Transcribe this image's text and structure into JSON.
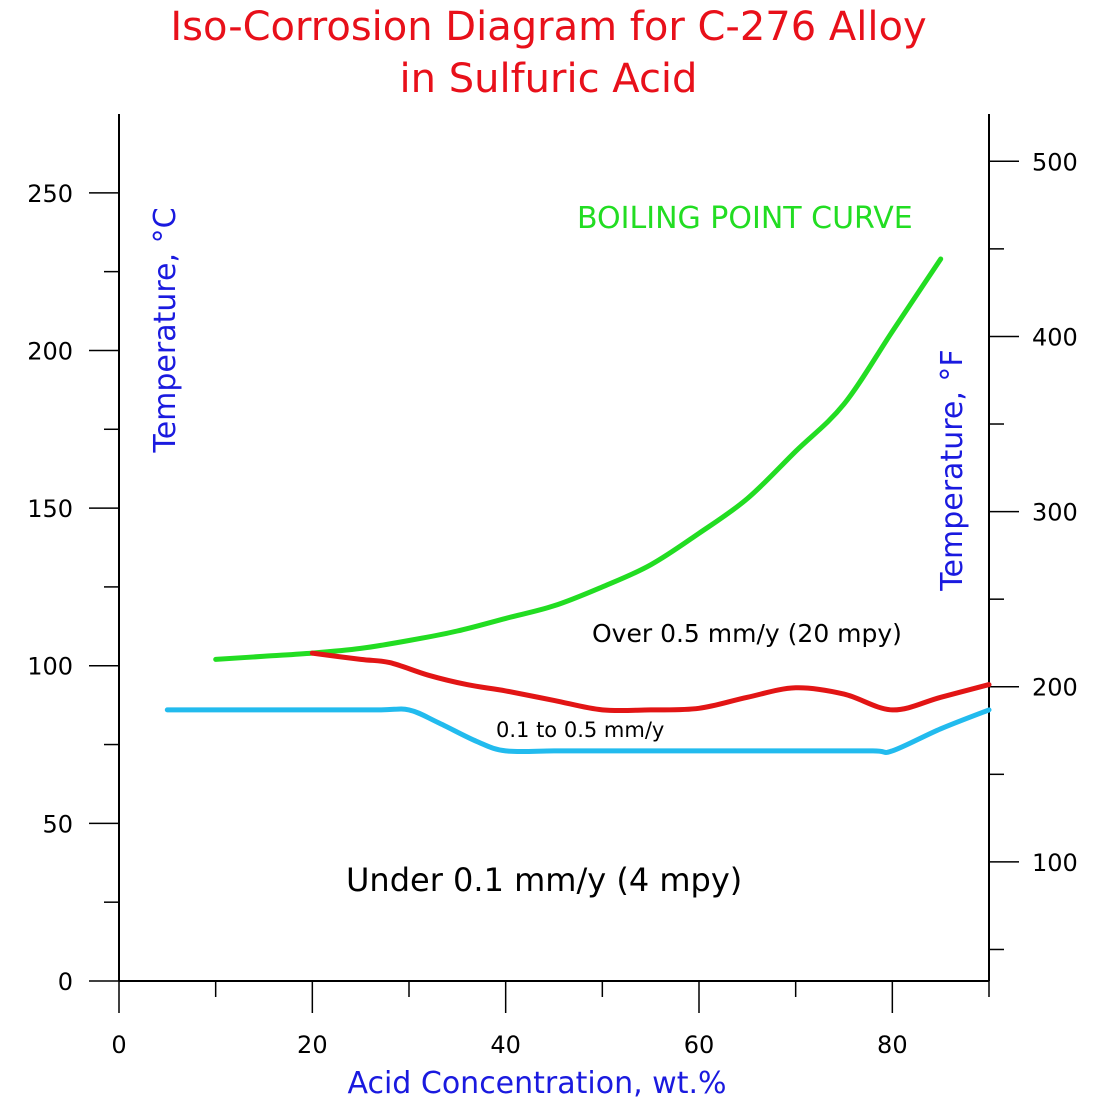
{
  "chart_data": {
    "type": "line",
    "title_line1": "Iso-Corrosion Diagram for C-276 Alloy",
    "title_line2": "in Sulfuric Acid",
    "xlabel": "Acid Concentration, wt.%",
    "ylabel_left": "Temperature, °C",
    "ylabel_right": "Temperature, °F",
    "xlim": [
      0,
      90
    ],
    "ylim": [
      0,
      275
    ],
    "ylim_right": [
      32,
      527
    ],
    "x_ticks": [
      0,
      20,
      40,
      60,
      80
    ],
    "y_ticks": [
      0,
      50,
      100,
      150,
      200,
      250
    ],
    "y_ticks_right": [
      100,
      200,
      300,
      400,
      500
    ],
    "grid": false,
    "series": [
      {
        "name": "BOILING POINT CURVE",
        "color": "#22dd22",
        "x": [
          10,
          15,
          20,
          25,
          30,
          35,
          40,
          45,
          50,
          55,
          60,
          65,
          70,
          75,
          80,
          85
        ],
        "y": [
          102,
          103,
          104,
          105.5,
          108,
          111,
          115,
          119,
          125,
          132,
          142,
          153,
          168,
          183,
          206,
          229
        ]
      },
      {
        "name": "0.5 mm/y",
        "color": "#e21515",
        "x": [
          20,
          25,
          28,
          32,
          36,
          40,
          45,
          50,
          55,
          60,
          65,
          70,
          75,
          80,
          85,
          90
        ],
        "y": [
          104,
          102,
          101,
          97,
          94,
          92,
          89,
          86,
          86,
          86.5,
          90,
          93,
          91,
          86,
          90,
          94
        ]
      },
      {
        "name": "0.1 mm/y",
        "color": "#22bbee",
        "x": [
          5,
          10,
          20,
          27,
          30,
          33,
          37,
          40,
          45,
          50,
          60,
          70,
          78,
          80,
          85,
          90
        ],
        "y": [
          86,
          86,
          86,
          86,
          86,
          82,
          76,
          73,
          73,
          73,
          73,
          73,
          73,
          73,
          80,
          86
        ]
      }
    ],
    "annotations": {
      "boiling_point": "BOILING POINT CURVE",
      "over": "Over 0.5 mm/y (20 mpy)",
      "between": "0.1 to 0.5 mm/y",
      "under": "Under 0.1 mm/y (4 mpy)"
    },
    "colors": {
      "title": "#e8101a",
      "axis_label": "#1a1adf",
      "annotation_green": "#22dd22",
      "text": "#000000"
    }
  }
}
